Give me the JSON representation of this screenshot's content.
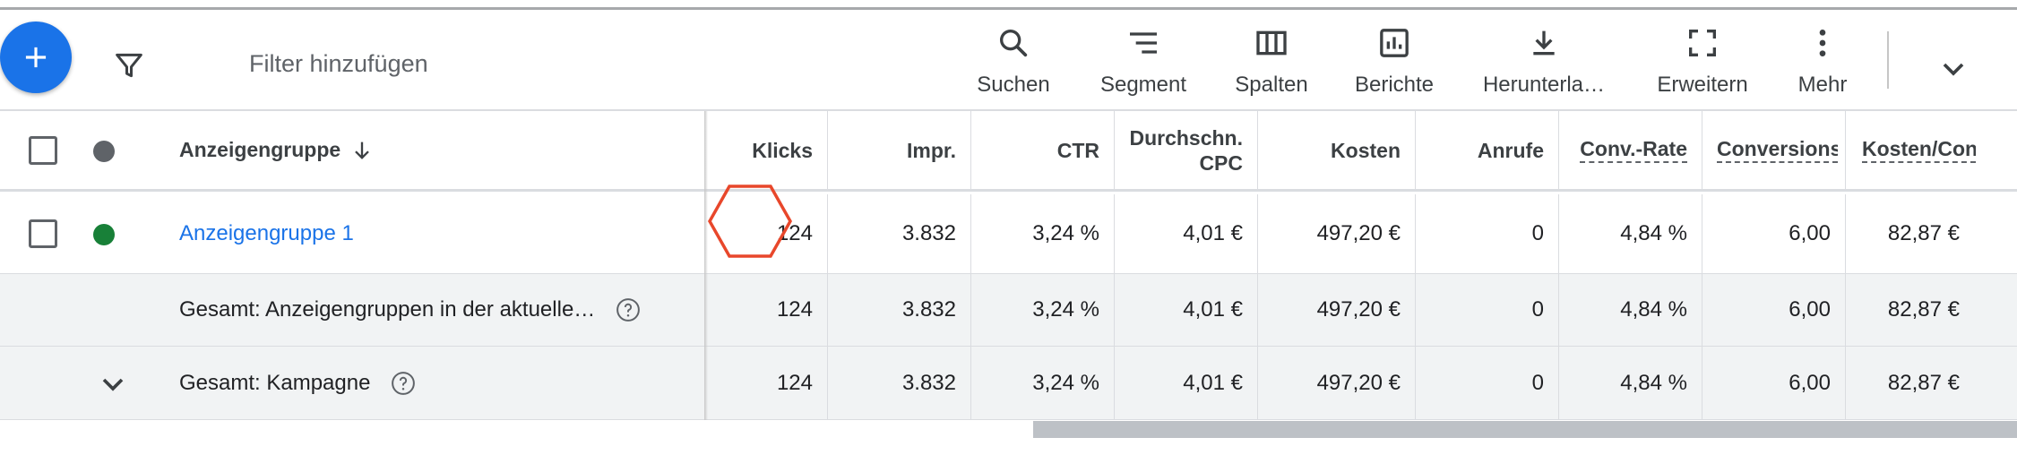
{
  "toolbar": {
    "filter_placeholder": "Filter hinzufügen",
    "tools": [
      {
        "label": "Suchen",
        "icon": "search-icon"
      },
      {
        "label": "Segment",
        "icon": "segment-icon"
      },
      {
        "label": "Spalten",
        "icon": "columns-icon"
      },
      {
        "label": "Berichte",
        "icon": "reports-icon"
      },
      {
        "label": "Herunterla…",
        "icon": "download-icon"
      },
      {
        "label": "Erweitern",
        "icon": "expand-icon"
      },
      {
        "label": "Mehr",
        "icon": "more-vert-icon"
      }
    ]
  },
  "table": {
    "name_header": "Anzeigengruppe",
    "columns": [
      "Klicks",
      "Impr.",
      "CTR",
      "Durchschn. CPC",
      "Kosten",
      "Anrufe",
      "Conv.-Rate",
      "Conversions",
      "Kosten/Con"
    ],
    "columns_split": {
      "cpc_line1": "Durchschn.",
      "cpc_line2": "CPC"
    },
    "rows": [
      {
        "name": "Anzeigengruppe 1",
        "status_color": "#188038",
        "values": [
          "124",
          "3.832",
          "3,24 %",
          "4,01 €",
          "497,20 €",
          "0",
          "4,84 %",
          "6,00",
          "82,87 €"
        ]
      },
      {
        "name": "Gesamt: Anzeigengruppen in der aktuelle…",
        "values": [
          "124",
          "3.832",
          "3,24 %",
          "4,01 €",
          "497,20 €",
          "0",
          "4,84 %",
          "6,00",
          "82,87 €"
        ]
      },
      {
        "name": "Gesamt: Kampagne",
        "values": [
          "124",
          "3.832",
          "3,24 %",
          "4,01 €",
          "497,20 €",
          "0",
          "4,84 %",
          "6,00",
          "82,87 €"
        ]
      }
    ]
  },
  "colors": {
    "accent": "#1a73e8",
    "enabled": "#188038",
    "header_dot": "#5f6368",
    "marker": "#e8472b"
  }
}
